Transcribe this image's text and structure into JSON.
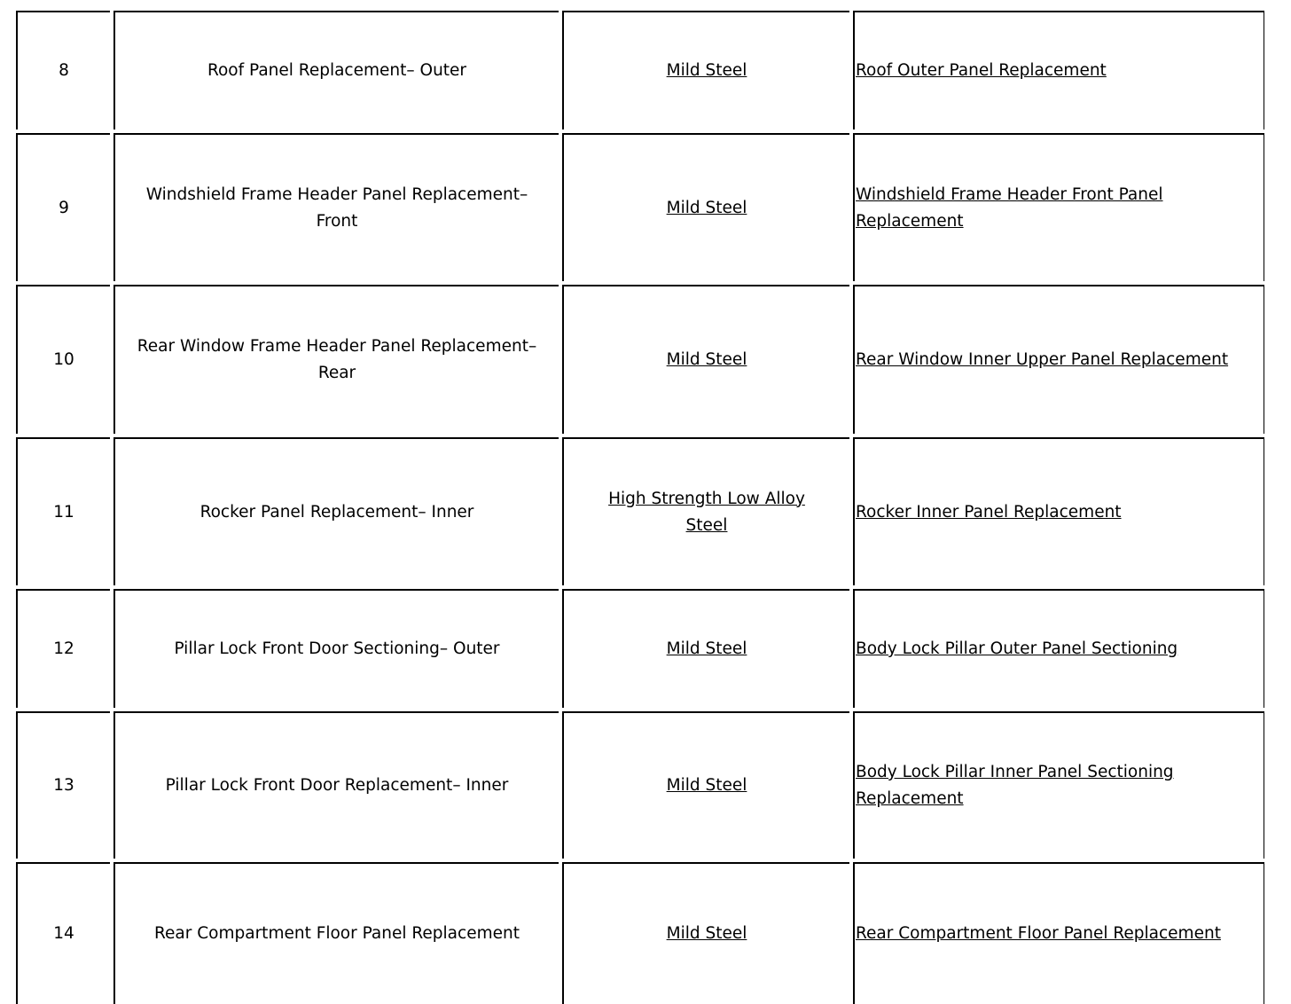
{
  "rows": [
    {
      "num": "8",
      "procedure": "Roof Panel Replacement– Outer",
      "material": "Mild Steel",
      "link": "Roof Outer Panel Replacement"
    },
    {
      "num": "9",
      "procedure": "Windshield Frame Header Panel Replacement– Front",
      "material": "Mild Steel",
      "link": "Windshield Frame Header Front Panel Replacement"
    },
    {
      "num": "10",
      "procedure": "Rear Window Frame Header Panel Replacement– Rear",
      "material": "Mild Steel",
      "link": "Rear Window Inner Upper Panel Replacement"
    },
    {
      "num": "11",
      "procedure": "Rocker Panel Replacement– Inner",
      "material": "High Strength Low Alloy Steel",
      "link": "Rocker Inner Panel Replacement"
    },
    {
      "num": "12",
      "procedure": "Pillar Lock Front Door Sectioning– Outer",
      "material": "Mild Steel",
      "link": "Body Lock Pillar Outer Panel Sectioning"
    },
    {
      "num": "13",
      "procedure": "Pillar Lock Front Door Replacement– Inner",
      "material": "Mild Steel",
      "link": "Body Lock Pillar Inner Panel Sectioning Replacement"
    },
    {
      "num": "14",
      "procedure": "Rear Compartment Floor Panel Replacement",
      "material": "Mild Steel",
      "link": "Rear Compartment Floor Panel Replacement"
    }
  ]
}
